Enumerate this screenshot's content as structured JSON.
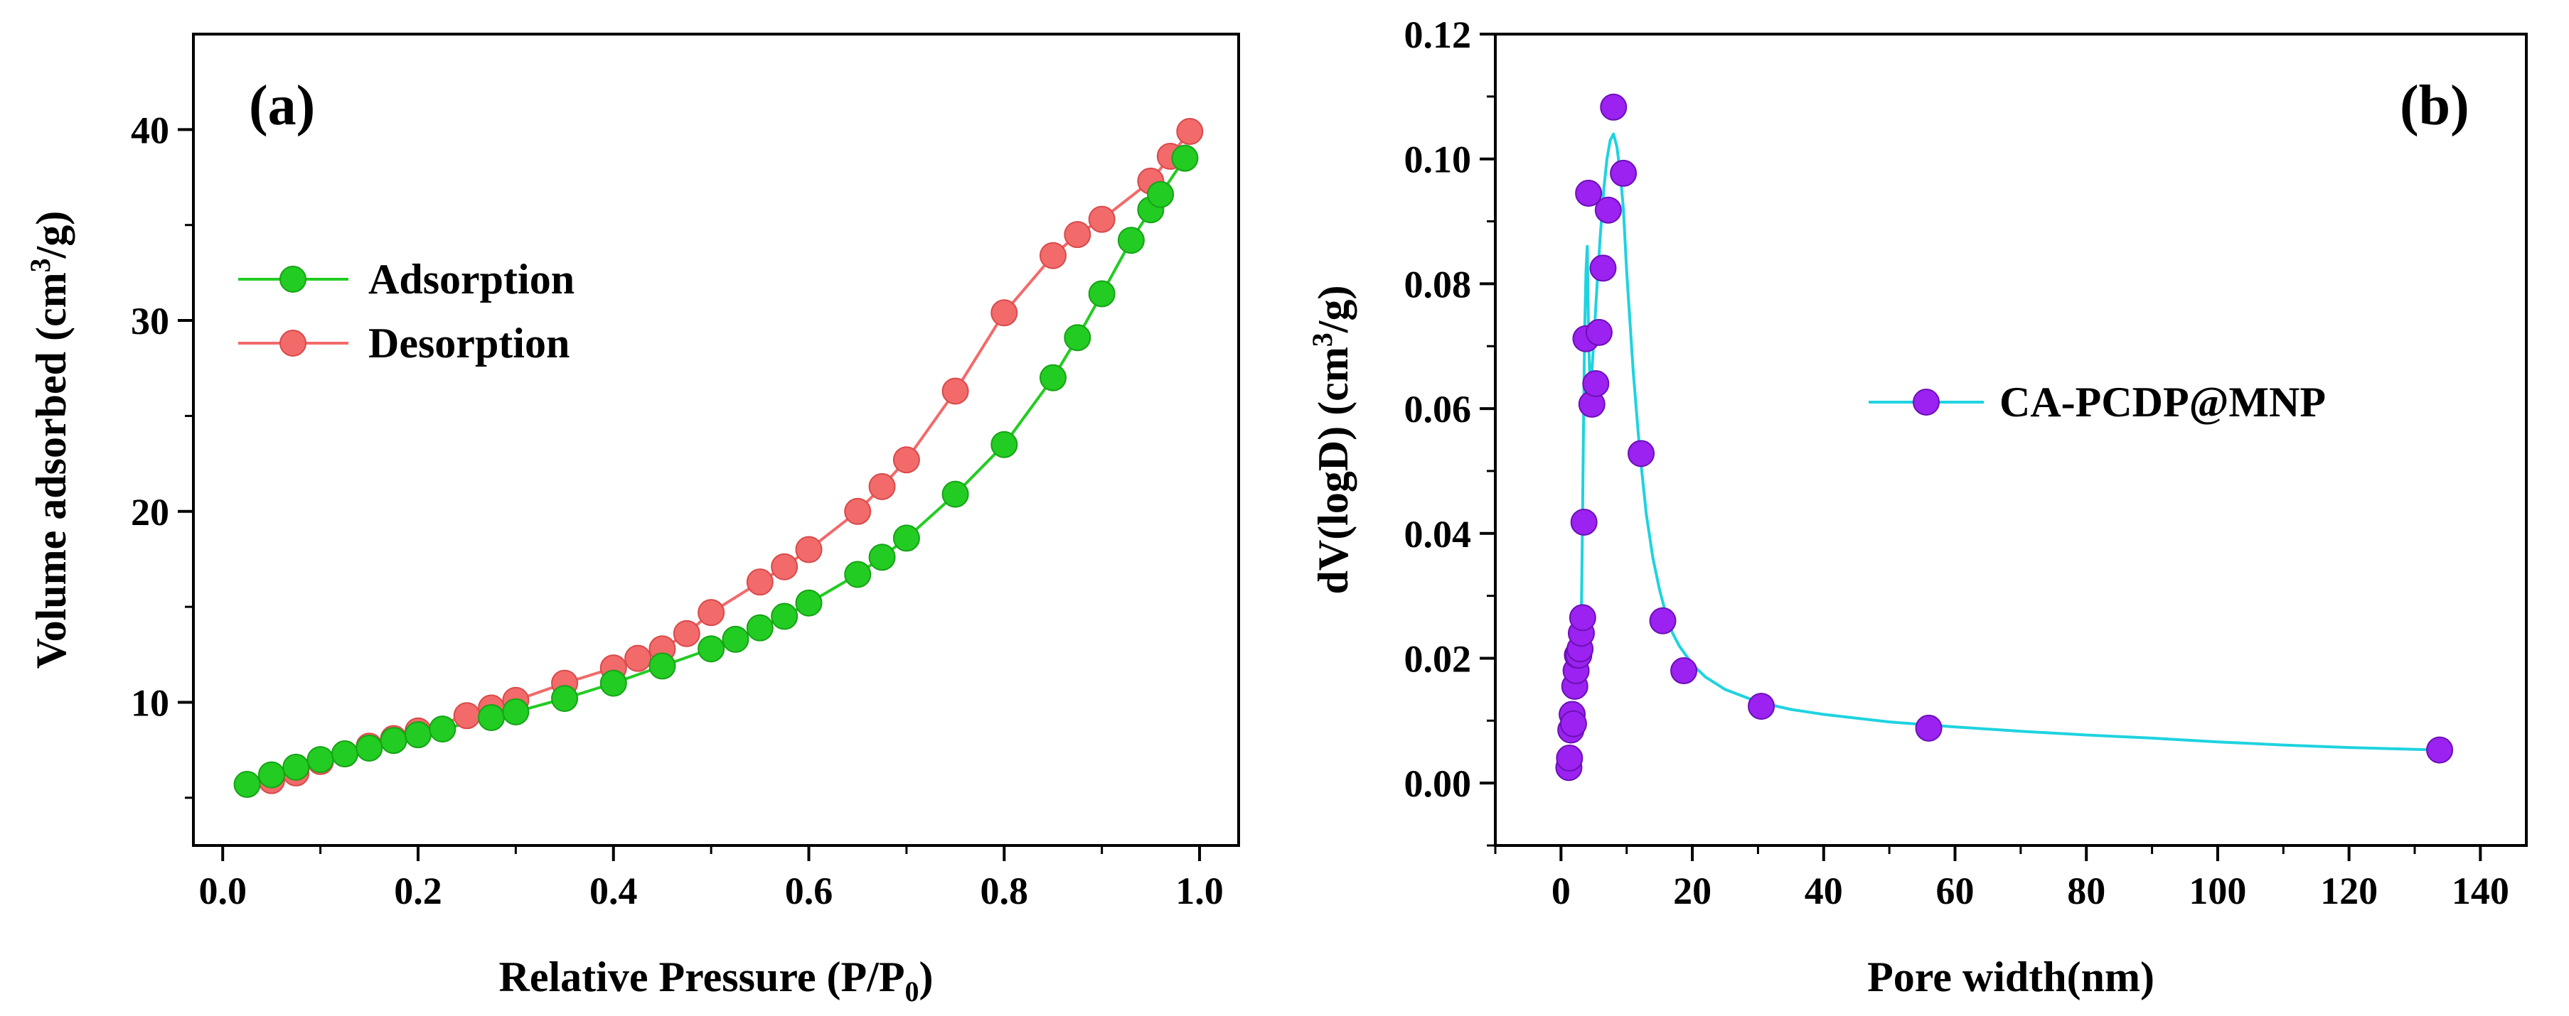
{
  "colors": {
    "adsorption": "#22cc22",
    "desorption": "#f26a6a",
    "pore_marker": "#9b22f0",
    "pore_line": "#1ed3df"
  },
  "chart_data": [
    {
      "type": "line",
      "panel_label": "(a)",
      "xlabel": "Relative Pressure (P/P",
      "xlabel_sub": "0",
      "xlabel_end": ")",
      "ylabel": "Volume adsorbed (cm",
      "ylabel_sup": "3",
      "ylabel_end": "/g)",
      "xlim": [
        -0.03,
        1.04
      ],
      "ylim": [
        2.5,
        45
      ],
      "xticks": [
        "0.0",
        "0.2",
        "0.4",
        "0.6",
        "0.8",
        "1.0"
      ],
      "yticks": [
        "10",
        "20",
        "30",
        "40"
      ],
      "legend_position": "upper-left",
      "series": [
        {
          "name": "Adsorption",
          "x": [
            0.025,
            0.05,
            0.075,
            0.1,
            0.125,
            0.15,
            0.175,
            0.2,
            0.225,
            0.275,
            0.3,
            0.35,
            0.4,
            0.45,
            0.5,
            0.525,
            0.55,
            0.575,
            0.6,
            0.65,
            0.675,
            0.7,
            0.75,
            0.8,
            0.85,
            0.875,
            0.9,
            0.93,
            0.95,
            0.96,
            0.985
          ],
          "y": [
            5.7,
            6.2,
            6.6,
            7.0,
            7.3,
            7.6,
            8.0,
            8.3,
            8.6,
            9.2,
            9.5,
            10.2,
            11.0,
            11.9,
            12.8,
            13.3,
            13.9,
            14.5,
            15.2,
            16.7,
            17.6,
            18.6,
            20.9,
            23.5,
            27.0,
            29.1,
            31.4,
            34.2,
            35.8,
            36.6,
            38.5
          ]
        },
        {
          "name": "Desorption",
          "x": [
            0.05,
            0.075,
            0.1,
            0.125,
            0.15,
            0.175,
            0.2,
            0.25,
            0.275,
            0.3,
            0.35,
            0.4,
            0.425,
            0.45,
            0.475,
            0.5,
            0.55,
            0.575,
            0.6,
            0.65,
            0.675,
            0.7,
            0.75,
            0.8,
            0.85,
            0.875,
            0.9,
            0.95,
            0.97,
            0.99
          ],
          "y": [
            5.9,
            6.3,
            6.9,
            7.3,
            7.7,
            8.1,
            8.5,
            9.3,
            9.7,
            10.1,
            11.0,
            11.8,
            12.3,
            12.8,
            13.6,
            14.7,
            16.3,
            17.1,
            18.0,
            20.0,
            21.3,
            22.7,
            26.3,
            30.4,
            33.4,
            34.5,
            35.3,
            37.3,
            38.6,
            39.9
          ]
        }
      ]
    },
    {
      "type": "scatter",
      "panel_label": "(b)",
      "xlabel": "Pore width(nm)",
      "ylabel": "dV(logD)  (cm",
      "ylabel_sup": "3",
      "ylabel_end": "/g)",
      "xlim": [
        -10,
        147
      ],
      "ylim": [
        -0.01,
        0.12
      ],
      "xticks": [
        "0",
        "20",
        "40",
        "60",
        "80",
        "100",
        "120",
        "140"
      ],
      "yticks": [
        "0.00",
        "0.02",
        "0.04",
        "0.06",
        "0.08",
        "0.10",
        "0.12"
      ],
      "legend_position": "center-right",
      "series": [
        {
          "name": "CA-PCDP@MNP",
          "x": [
            1.2,
            1.3,
            1.5,
            1.7,
            1.9,
            2.1,
            2.3,
            2.5,
            2.7,
            2.9,
            3.1,
            3.3,
            3.5,
            3.8,
            4.2,
            4.7,
            5.3,
            5.8,
            6.4,
            7.2,
            8.0,
            9.5,
            12.2,
            15.5,
            18.7,
            30.5,
            56.0,
            133.8
          ],
          "y": [
            0.0025,
            0.004,
            0.0085,
            0.011,
            0.0095,
            0.0155,
            0.018,
            0.0205,
            0.0205,
            0.0215,
            0.024,
            0.0265,
            0.0418,
            0.0712,
            0.0945,
            0.0607,
            0.064,
            0.0722,
            0.0825,
            0.0918,
            0.1083,
            0.0977,
            0.0528,
            0.026,
            0.018,
            0.0123,
            0.0088,
            0.0053
          ]
        }
      ],
      "fit_curve": {
        "x": [
          3.0,
          3.2,
          3.4,
          3.6,
          3.8,
          4.0,
          4.2,
          4.4,
          4.6,
          5.0,
          5.5,
          6.0,
          6.5,
          7.0,
          7.5,
          8.0,
          8.5,
          9.0,
          9.5,
          10.0,
          11.0,
          12.0,
          13.0,
          14.0,
          15.0,
          16.0,
          17.0,
          18.0,
          20.0,
          22.0,
          25.0,
          30.0,
          35.0,
          40.0,
          50.0,
          60.0,
          70.0,
          80.0,
          90.0,
          100.0,
          110.0,
          120.0,
          133.8
        ],
        "y": [
          0.02,
          0.035,
          0.055,
          0.072,
          0.082,
          0.086,
          0.072,
          0.064,
          0.064,
          0.071,
          0.08,
          0.088,
          0.095,
          0.1,
          0.103,
          0.104,
          0.102,
          0.098,
          0.092,
          0.082,
          0.066,
          0.053,
          0.043,
          0.036,
          0.031,
          0.027,
          0.024,
          0.022,
          0.019,
          0.017,
          0.015,
          0.013,
          0.0118,
          0.011,
          0.0098,
          0.009,
          0.0083,
          0.0077,
          0.0072,
          0.0066,
          0.0061,
          0.0057,
          0.0053
        ]
      }
    }
  ]
}
